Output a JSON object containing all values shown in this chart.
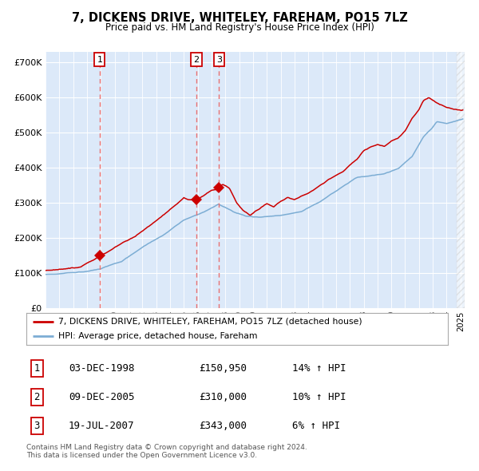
{
  "title": "7, DICKENS DRIVE, WHITELEY, FAREHAM, PO15 7LZ",
  "subtitle": "Price paid vs. HM Land Registry's House Price Index (HPI)",
  "legend_line1": "7, DICKENS DRIVE, WHITELEY, FAREHAM, PO15 7LZ (detached house)",
  "legend_line2": "HPI: Average price, detached house, Fareham",
  "transactions": [
    {
      "num": 1,
      "date": "03-DEC-1998",
      "price": "£150,950",
      "pct": "14%",
      "dir": "↑"
    },
    {
      "num": 2,
      "date": "09-DEC-2005",
      "price": "£310,000",
      "pct": "10%",
      "dir": "↑"
    },
    {
      "num": 3,
      "date": "19-JUL-2007",
      "price": "£343,000",
      "pct": "6%",
      "dir": "↑"
    }
  ],
  "trans_dates": [
    1998.917,
    2005.917,
    2007.542
  ],
  "trans_prices": [
    150950,
    310000,
    343000
  ],
  "footnote1": "Contains HM Land Registry data © Crown copyright and database right 2024.",
  "footnote2": "This data is licensed under the Open Government Licence v3.0.",
  "plot_bg_color": "#dce9f9",
  "red_line_color": "#cc0000",
  "blue_line_color": "#7cadd4",
  "marker_color": "#cc0000",
  "dashed_line_color": "#e87070",
  "grid_color": "#ffffff",
  "ylim": [
    0,
    730000
  ],
  "yticks": [
    0,
    100000,
    200000,
    300000,
    400000,
    500000,
    600000,
    700000
  ],
  "xstart": 1995.0,
  "xend": 2025.3,
  "annotation_box_edge": "#cc0000"
}
